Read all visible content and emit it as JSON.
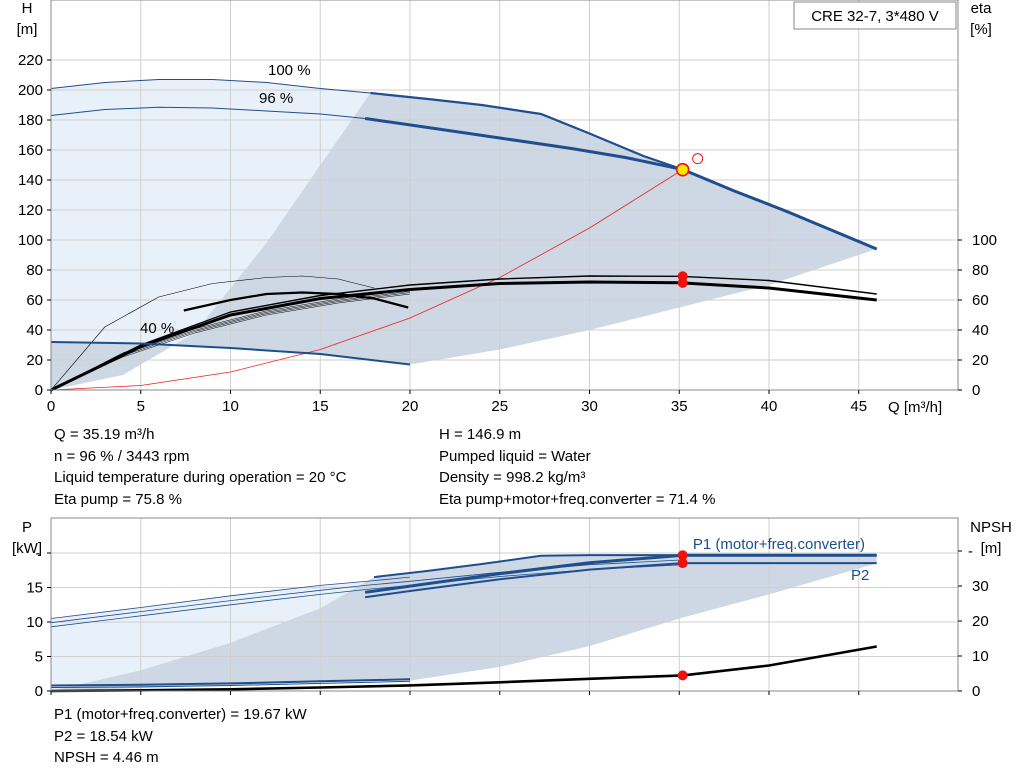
{
  "chart_data": [
    {
      "type": "line",
      "title": "CRE 32-7, 3*480 V",
      "xlabel": "Q [m³/h]",
      "ylabel_left_name": "H",
      "ylabel_left_unit": "[m]",
      "ylabel_right_name": "eta",
      "ylabel_right_unit": "[%]",
      "xlim": [
        0,
        47
      ],
      "ylim": [
        0,
        230
      ],
      "x_ticks": [
        0,
        5,
        10,
        15,
        20,
        25,
        30,
        35,
        40,
        45
      ],
      "y_ticks_left": [
        0,
        20,
        40,
        60,
        80,
        100,
        120,
        140,
        160,
        180,
        200,
        220
      ],
      "y_ticks_right": [
        0,
        20,
        40,
        60,
        80,
        100
      ],
      "grid": true,
      "curve_labels": [
        "100 %",
        "96 %",
        "40 %"
      ],
      "operating_point": {
        "Q": 35.19,
        "H": 146.9,
        "eta_pump": 75.8,
        "eta_total": 71.4
      },
      "series": [
        {
          "name": "100 %",
          "role": "head",
          "x": [
            0,
            3,
            6,
            9,
            12,
            15,
            17.8,
            21,
            24,
            27.3,
            30,
            33,
            35.2,
            38,
            41,
            44,
            46
          ],
          "values": [
            201,
            205,
            207,
            207,
            205,
            201,
            198,
            194,
            190,
            184,
            171,
            156,
            147,
            133,
            119,
            104,
            94
          ]
        },
        {
          "name": "96 %",
          "role": "head",
          "x": [
            0,
            3,
            6,
            9,
            12,
            15,
            17.5,
            21,
            25,
            29,
            32,
            35.2
          ],
          "values": [
            183,
            187,
            188.5,
            188,
            186,
            184,
            181,
            175,
            168,
            161,
            155,
            147
          ]
        },
        {
          "name": "40 %",
          "role": "head",
          "x": [
            0,
            5,
            10,
            15,
            20
          ],
          "values": [
            32,
            31,
            28,
            24,
            17
          ]
        },
        {
          "role": "eta",
          "x": [
            0,
            5,
            10,
            15,
            20,
            25,
            30,
            35,
            40,
            46
          ],
          "values": [
            0,
            29,
            50,
            61,
            67,
            71,
            72,
            71.5,
            68,
            60
          ]
        },
        {
          "role": "eta",
          "x": [
            0,
            5,
            10,
            15,
            20,
            25,
            30,
            35,
            40,
            46
          ],
          "values": [
            0,
            30,
            52,
            63,
            70,
            74,
            76,
            75.8,
            73,
            64
          ]
        },
        {
          "role": "eta",
          "x": [
            7.4,
            10,
            12,
            14,
            16,
            18,
            19.9
          ],
          "values": [
            53,
            60,
            64,
            65,
            64,
            61,
            55
          ]
        },
        {
          "role": "eta",
          "x": [
            0,
            3,
            6,
            9,
            12,
            14,
            16,
            18
          ],
          "values": [
            0,
            42,
            62,
            71,
            75,
            76,
            74,
            68
          ]
        },
        {
          "role": "system",
          "x": [
            0,
            5,
            10,
            15,
            20,
            25,
            30,
            35.2
          ],
          "values": [
            0,
            3,
            12,
            27,
            48,
            75,
            108,
            147
          ]
        }
      ],
      "markers": [
        {
          "x": 35.19,
          "y": 146.9
        },
        {
          "x": 35.19,
          "y": 75.8
        },
        {
          "x": 35.19,
          "y": 71.4
        }
      ],
      "efficiency_region": {
        "x": [
          20,
          25,
          30,
          35,
          40,
          46
        ],
        "values": [
          17,
          27,
          40,
          55,
          70,
          94
        ]
      },
      "left_region": {
        "x": [
          0,
          4,
          8,
          12,
          15,
          17.8
        ],
        "values": [
          0,
          10,
          38,
          98,
          150,
          198
        ]
      }
    },
    {
      "type": "line",
      "ylabel_left_name": "P",
      "ylabel_left_unit": "[kW]",
      "ylabel_right_name": "NPSH",
      "ylabel_right_unit": "[m]",
      "xlim": [
        0,
        47
      ],
      "ylim": [
        0,
        24
      ],
      "y_ticks_left": [
        0,
        5,
        10,
        15
      ],
      "y_ticks_right": [
        0,
        10,
        20,
        30
      ],
      "y_ticks_right_max": 40,
      "grid": true,
      "series_labels": [
        "P1 (motor+freq.converter)",
        "P2"
      ],
      "series": [
        {
          "role": "p1_thin",
          "x": [
            0,
            5,
            10,
            15,
            18,
            20
          ],
          "values": [
            10.5,
            12.1,
            13.8,
            15.3,
            16.0,
            16.5
          ]
        },
        {
          "role": "p1_thin",
          "x": [
            0,
            5,
            10,
            15,
            17.5,
            20,
            25,
            30,
            35.2
          ],
          "values": [
            9.9,
            11.5,
            13.1,
            14.6,
            15.3,
            15.9,
            17.2,
            18.3,
            19.0
          ]
        },
        {
          "role": "p1_thin",
          "x": [
            0,
            5,
            10,
            15,
            17.5,
            20,
            25,
            30,
            35.2
          ],
          "values": [
            9.3,
            10.9,
            12.5,
            14.0,
            14.7,
            15.3,
            16.6,
            17.6,
            18.3
          ]
        },
        {
          "role": "p1_full",
          "x": [
            18,
            21,
            24,
            27.3,
            30,
            35.2,
            40,
            46
          ],
          "values": [
            16.5,
            17.4,
            18.4,
            19.6,
            19.7,
            19.7,
            19.7,
            19.7
          ]
        },
        {
          "name": "P1 (motor+freq.converter)",
          "role": "p1_op",
          "x": [
            17.5,
            20,
            25,
            30,
            35.2,
            40,
            46
          ],
          "values": [
            14.3,
            15.2,
            17.0,
            18.6,
            19.67,
            19.67,
            19.67
          ]
        },
        {
          "name": "P2",
          "role": "p2",
          "x": [
            17.5,
            20,
            25,
            30,
            35.2,
            40,
            46
          ],
          "values": [
            13.6,
            14.5,
            16.2,
            17.6,
            18.54,
            18.54,
            18.54
          ]
        },
        {
          "role": "p_low",
          "x": [
            0,
            5,
            10,
            15,
            20
          ],
          "values": [
            0.8,
            0.9,
            1.1,
            1.4,
            1.7
          ]
        },
        {
          "role": "npsh",
          "x": [
            0,
            5,
            10,
            15,
            20,
            25,
            30,
            35.2,
            40,
            46
          ],
          "values": [
            0,
            0.2,
            0.5,
            1.0,
            1.6,
            2.5,
            3.5,
            4.46,
            7.3,
            12.7
          ]
        }
      ],
      "markers": [
        {
          "x": 35.19,
          "y": 19.67
        },
        {
          "x": 35.19,
          "y": 18.54
        },
        {
          "x": 35.19,
          "y": 4.46,
          "axis": "right"
        }
      ],
      "shade_region": {
        "x": [
          20,
          25,
          30,
          35,
          40,
          46
        ],
        "values": [
          1.5,
          3.5,
          6.5,
          10.5,
          14,
          18.5
        ]
      },
      "left_region": {
        "x": [
          0,
          5,
          10,
          15,
          18
        ],
        "values": [
          0,
          3,
          7,
          12,
          16.5
        ]
      }
    }
  ],
  "info_top_left": [
    "Q = 35.19 m³/h",
    "n = 96 % / 3443 rpm",
    "Liquid temperature during operation = 20 °C",
    "Eta pump = 75.8 %"
  ],
  "info_top_right": [
    "H = 146.9 m",
    "Pumped liquid = Water",
    "Density = 998.2 kg/m³",
    "Eta pump+motor+freq.converter = 71.4 %"
  ],
  "info_bottom": [
    "P1 (motor+freq.converter) = 19.67 kW",
    "P2 = 18.54 kW",
    "NPSH = 4.46 m"
  ],
  "colors": {
    "curve_blue": "#1f4e8c",
    "shade": "#cdd8e4",
    "shade_light": "#e8f1fa",
    "marker_red": "#ee1111",
    "marker_yellow": "#ffe800",
    "system_line": "#ee2222"
  }
}
